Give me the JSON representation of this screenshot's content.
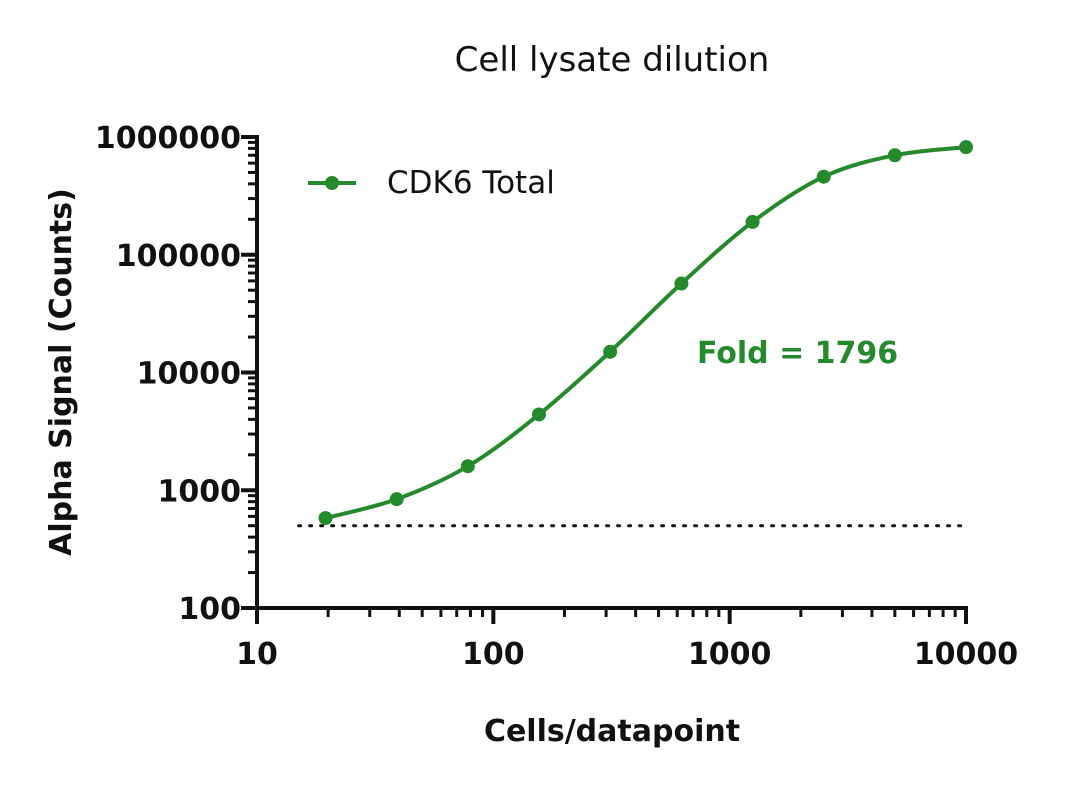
{
  "chart_data": {
    "type": "line",
    "title": "Cell lysate dilution",
    "xlabel": "Cells/datapoint",
    "ylabel": "Alpha Signal (Counts)",
    "x_scale": "log",
    "y_scale": "log",
    "xlim": [
      10,
      10000
    ],
    "ylim": [
      100,
      1000000
    ],
    "x_ticks": [
      "10",
      "100",
      "1000",
      "10000"
    ],
    "y_ticks": [
      "100",
      "1000",
      "10000",
      "100000",
      "1000000"
    ],
    "legend_position": "top-left",
    "series": [
      {
        "name": "CDK6 Total",
        "color": "#248a2c",
        "x": [
          19.5,
          39,
          78,
          156,
          312,
          625,
          1250,
          2500,
          5000,
          10000
        ],
        "y": [
          580,
          840,
          1600,
          4400,
          15000,
          57000,
          190000,
          460000,
          700000,
          820000
        ]
      }
    ],
    "background_line": {
      "style": "dotted",
      "color": "#111111",
      "y": 500,
      "x_start": 15,
      "x_end": 10000
    },
    "annotation": {
      "text": "Fold = 1796",
      "color": "#248a2c"
    }
  }
}
